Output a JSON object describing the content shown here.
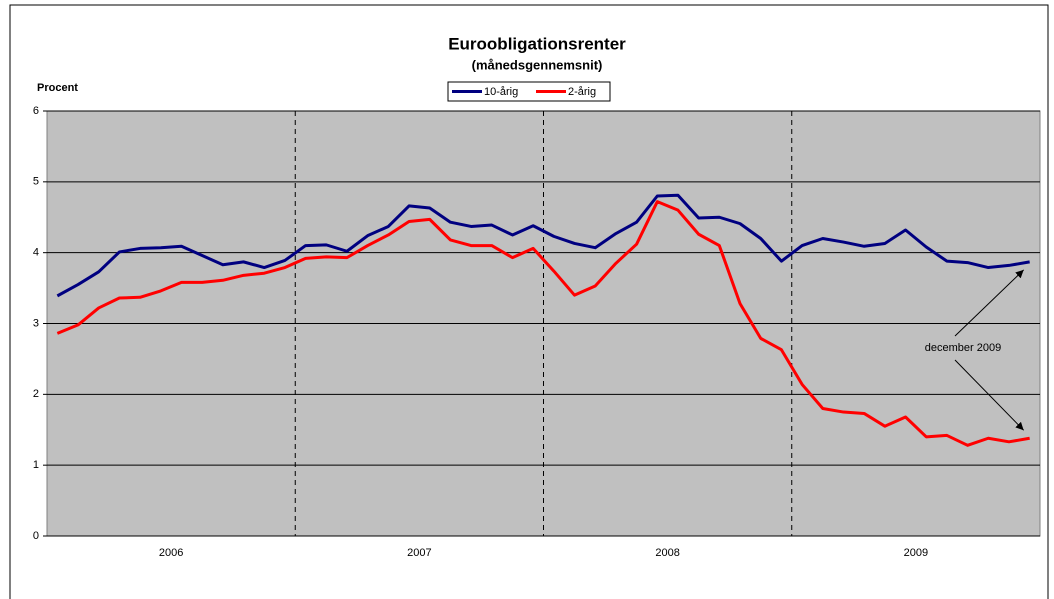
{
  "chart_data": {
    "type": "line",
    "title": "Euroobligationsrenter",
    "subtitle": "(månedsgennemsnit)",
    "y_axis_label": "Procent",
    "year_labels": [
      "2006",
      "2007",
      "2008",
      "2009"
    ],
    "ylim": [
      0,
      6
    ],
    "yticks": [
      0,
      1,
      2,
      3,
      4,
      5,
      6
    ],
    "grid": true,
    "annotation": "december 2009",
    "series": [
      {
        "name": "10-årig",
        "color": "#000080",
        "values": [
          3.39,
          3.55,
          3.73,
          4.01,
          4.06,
          4.07,
          4.09,
          3.96,
          3.83,
          3.87,
          3.79,
          3.89,
          4.1,
          4.11,
          4.02,
          4.24,
          4.37,
          4.66,
          4.63,
          4.43,
          4.37,
          4.39,
          4.25,
          4.38,
          4.23,
          4.13,
          4.07,
          4.27,
          4.43,
          4.8,
          4.81,
          4.49,
          4.5,
          4.41,
          4.2,
          3.88,
          4.1,
          4.2,
          4.15,
          4.09,
          4.13,
          4.32,
          4.08,
          3.88,
          3.86,
          3.79,
          3.82,
          3.87
        ]
      },
      {
        "name": "2-årig",
        "color": "#ff0000",
        "values": [
          2.86,
          2.98,
          3.22,
          3.36,
          3.37,
          3.46,
          3.58,
          3.58,
          3.61,
          3.68,
          3.71,
          3.79,
          3.92,
          3.94,
          3.93,
          4.1,
          4.25,
          4.44,
          4.47,
          4.18,
          4.1,
          4.1,
          3.93,
          4.06,
          3.74,
          3.4,
          3.53,
          3.85,
          4.12,
          4.72,
          4.6,
          4.26,
          4.1,
          3.28,
          2.79,
          2.63,
          2.14,
          1.8,
          1.75,
          1.73,
          1.55,
          1.68,
          1.4,
          1.42,
          1.28,
          1.38,
          1.33,
          1.38
        ]
      }
    ]
  }
}
